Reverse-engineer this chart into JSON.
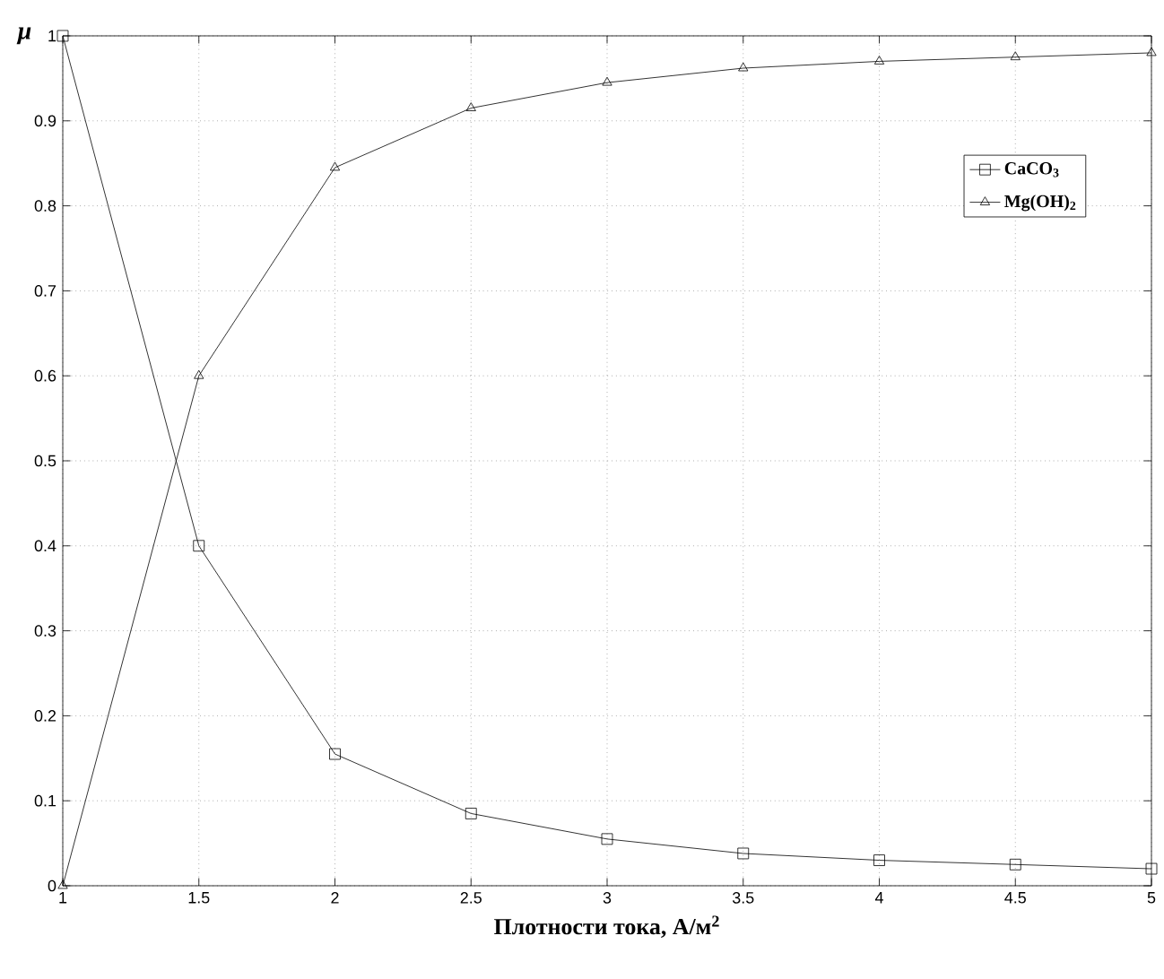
{
  "chart_data": {
    "type": "line",
    "xlabel": "Плотности тока, А/м$^{2}$",
    "ylabel": "μ",
    "x": [
      1,
      1.5,
      2,
      2.5,
      3,
      3.5,
      4,
      4.5,
      5
    ],
    "series": [
      {
        "name": "CaCO$_{3}$",
        "color": "#000000",
        "marker": "square",
        "values": [
          1.0,
          0.4,
          0.155,
          0.085,
          0.055,
          0.038,
          0.03,
          0.025,
          0.02
        ]
      },
      {
        "name": "Mg(OH)$_{2}$",
        "color": "#000000",
        "marker": "triangle",
        "values": [
          0.0,
          0.6,
          0.845,
          0.915,
          0.945,
          0.962,
          0.97,
          0.975,
          0.98
        ]
      }
    ],
    "xlim": [
      1,
      5
    ],
    "xticks": [
      1,
      1.5,
      2,
      2.5,
      3,
      3.5,
      4,
      4.5,
      5
    ],
    "ylim": [
      0,
      1
    ],
    "yticks": [
      0,
      0.1,
      0.2,
      0.3,
      0.4,
      0.5,
      0.6,
      0.7,
      0.8,
      0.9,
      1
    ],
    "grid": true,
    "legend": "top right",
    "line_style": "solid"
  }
}
